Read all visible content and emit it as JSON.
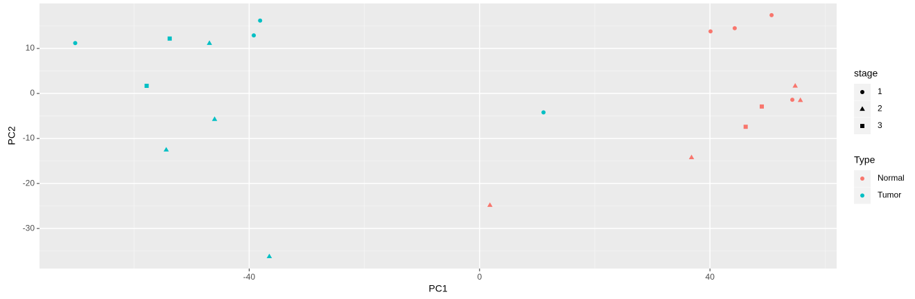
{
  "chart_data": {
    "type": "scatter",
    "x_label": "PC1",
    "y_label": "PC2",
    "xlim": [
      -76.4,
      62.0
    ],
    "ylim": [
      -38.9,
      20.0
    ],
    "xticks": [
      -40,
      0,
      40
    ],
    "yticks": [
      -30,
      -20,
      -10,
      0,
      10
    ],
    "grid": true,
    "shape_legend": {
      "title": "stage",
      "labels": [
        "1",
        "2",
        "3"
      ],
      "shapes": [
        "circle",
        "triangle",
        "square"
      ]
    },
    "color_legend_title": "Type",
    "series": [
      {
        "name": "Normal",
        "color": "#f8766d",
        "x": [
          40.1,
          44.3,
          50.7,
          54.8,
          54.3,
          55.7,
          49.0,
          46.2,
          36.8,
          1.8
        ],
        "y": [
          13.8,
          14.5,
          17.4,
          1.7,
          -1.4,
          -1.5,
          -2.9,
          -7.4,
          -14.2,
          -24.8
        ],
        "stage": [
          "1",
          "1",
          "1",
          "2",
          "1",
          "2",
          "3",
          "3",
          "2",
          "2"
        ]
      },
      {
        "name": "Tumor",
        "color": "#00bfc4",
        "x": [
          -70.2,
          -53.8,
          -46.9,
          -38.1,
          -39.2,
          -57.8,
          -46.0,
          -54.4,
          -36.5,
          11.1
        ],
        "y": [
          11.2,
          12.2,
          11.2,
          16.2,
          12.9,
          1.7,
          -5.7,
          -12.5,
          -36.2,
          -4.2
        ],
        "stage": [
          "1",
          "3",
          "2",
          "1",
          "1",
          "3",
          "2",
          "2",
          "2",
          "1"
        ]
      }
    ]
  }
}
